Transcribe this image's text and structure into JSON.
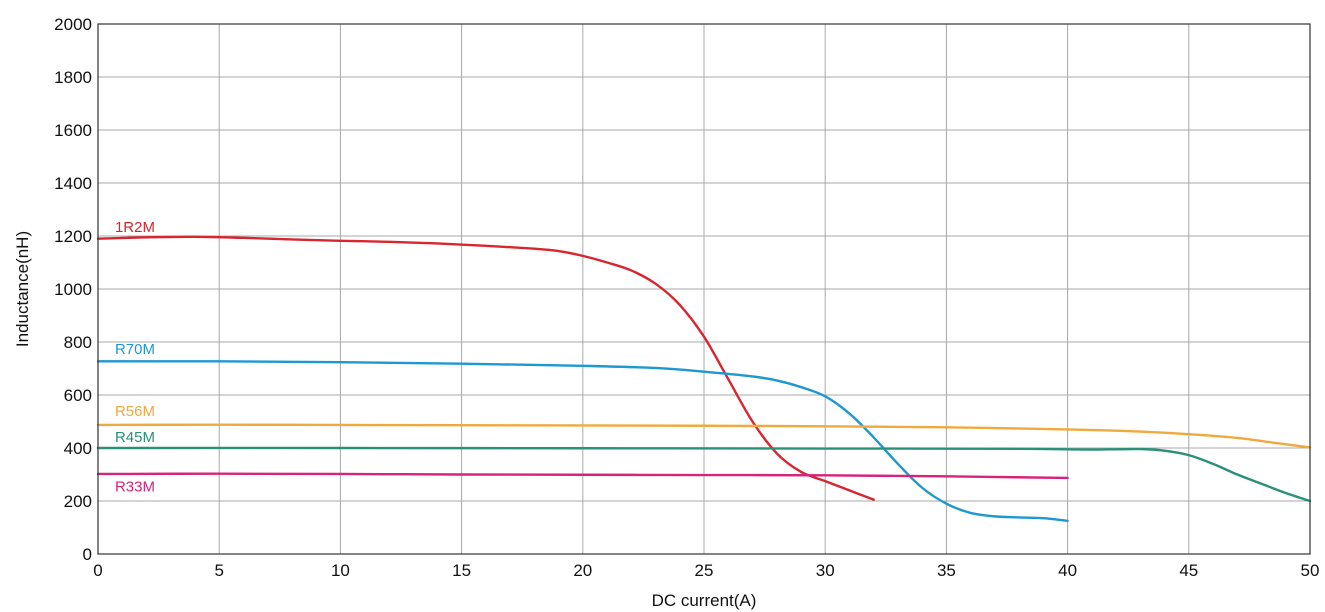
{
  "chart_data": {
    "type": "line",
    "xlabel": "DC current(A)",
    "ylabel": "Inductance(nH)",
    "xlim": [
      0,
      50
    ],
    "ylim": [
      0,
      2000
    ],
    "x_ticks": [
      0,
      5,
      10,
      15,
      20,
      25,
      30,
      35,
      40,
      45,
      50
    ],
    "y_ticks": [
      0,
      200,
      400,
      600,
      800,
      1000,
      1200,
      1400,
      1600,
      1800,
      2000
    ],
    "grid": true,
    "legend": "inline labels at left",
    "series": [
      {
        "name": "1R2M",
        "color": "#d7262e",
        "points": [
          [
            0,
            1190
          ],
          [
            2,
            1195
          ],
          [
            4,
            1197
          ],
          [
            6,
            1193
          ],
          [
            8,
            1187
          ],
          [
            10,
            1182
          ],
          [
            12,
            1178
          ],
          [
            14,
            1172
          ],
          [
            16,
            1163
          ],
          [
            18,
            1152
          ],
          [
            19,
            1143
          ],
          [
            20,
            1125
          ],
          [
            21,
            1100
          ],
          [
            22,
            1070
          ],
          [
            23,
            1020
          ],
          [
            24,
            940
          ],
          [
            25,
            820
          ],
          [
            26,
            660
          ],
          [
            27,
            500
          ],
          [
            28,
            380
          ],
          [
            29,
            310
          ],
          [
            30,
            275
          ],
          [
            31,
            240
          ],
          [
            32,
            205
          ]
        ]
      },
      {
        "name": "R70M",
        "color": "#1d98d0",
        "points": [
          [
            0,
            727
          ],
          [
            5,
            727
          ],
          [
            10,
            724
          ],
          [
            15,
            718
          ],
          [
            20,
            710
          ],
          [
            23,
            702
          ],
          [
            25,
            688
          ],
          [
            27,
            670
          ],
          [
            28,
            655
          ],
          [
            29,
            630
          ],
          [
            30,
            595
          ],
          [
            31,
            530
          ],
          [
            32,
            440
          ],
          [
            33,
            340
          ],
          [
            34,
            250
          ],
          [
            35,
            190
          ],
          [
            36,
            155
          ],
          [
            37,
            142
          ],
          [
            38,
            138
          ],
          [
            39,
            135
          ],
          [
            40,
            125
          ]
        ]
      },
      {
        "name": "R56M",
        "color": "#f0a93c",
        "points": [
          [
            0,
            487
          ],
          [
            5,
            488
          ],
          [
            10,
            487
          ],
          [
            15,
            486
          ],
          [
            20,
            485
          ],
          [
            25,
            484
          ],
          [
            30,
            482
          ],
          [
            35,
            478
          ],
          [
            40,
            470
          ],
          [
            43,
            462
          ],
          [
            45,
            452
          ],
          [
            47,
            438
          ],
          [
            48.5,
            420
          ],
          [
            50,
            402
          ]
        ]
      },
      {
        "name": "R45M",
        "color": "#2a9078",
        "points": [
          [
            0,
            400
          ],
          [
            10,
            400
          ],
          [
            20,
            399
          ],
          [
            30,
            398
          ],
          [
            38,
            397
          ],
          [
            40,
            395
          ],
          [
            41,
            394
          ],
          [
            43,
            396
          ],
          [
            44,
            390
          ],
          [
            45,
            373
          ],
          [
            46,
            340
          ],
          [
            47,
            300
          ],
          [
            48,
            265
          ],
          [
            49,
            230
          ],
          [
            50,
            200
          ]
        ]
      },
      {
        "name": "R33M",
        "color": "#d6247a",
        "points": [
          [
            0,
            302
          ],
          [
            5,
            303
          ],
          [
            10,
            302
          ],
          [
            15,
            300
          ],
          [
            20,
            299
          ],
          [
            25,
            298
          ],
          [
            30,
            297
          ],
          [
            35,
            293
          ],
          [
            40,
            287
          ]
        ]
      }
    ],
    "labels": [
      {
        "series": "1R2M",
        "text": "1R2M",
        "x": 0.7,
        "y": 1215
      },
      {
        "series": "R70M",
        "text": "R70M",
        "x": 0.7,
        "y": 755
      },
      {
        "series": "R56M",
        "text": "R56M",
        "x": 0.7,
        "y": 520
      },
      {
        "series": "R45M",
        "text": "R45M",
        "x": 0.7,
        "y": 423
      },
      {
        "series": "R33M",
        "text": "R33M",
        "x": 0.7,
        "y": 235
      }
    ]
  }
}
